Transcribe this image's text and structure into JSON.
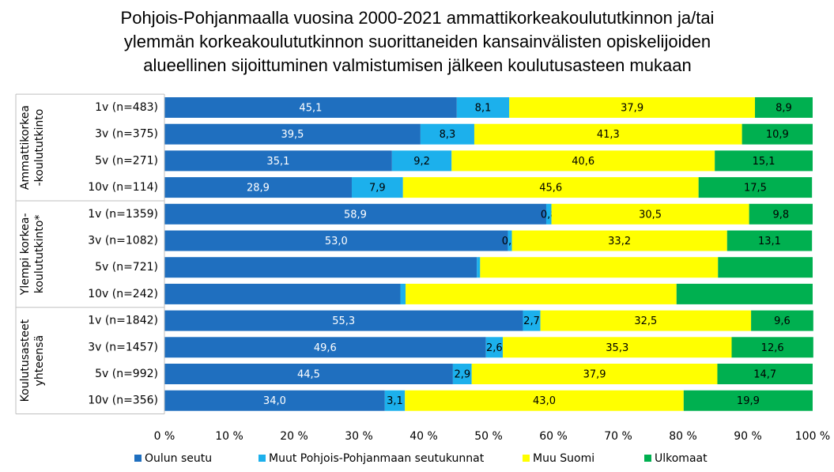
{
  "chart_data": {
    "type": "stacked_barh",
    "title_lines": [
      "Pohjois-Pohjanmaalla vuosina 2000-2021 ammattikorkeakoulututkinnon ja/tai",
      "ylemmän korkeakoulututkinnon suorittaneiden kansainvälisten opiskelijoiden",
      "alueellinen sijoittuminen valmistumisen jälkeen koulutusasteen mukaan"
    ],
    "groups": [
      {
        "lines": [
          "Ammattikorkea",
          "-koulututkinto"
        ],
        "categories": [
          "1v (n=483)",
          "3v (n=375)",
          "5v (n=271)",
          "10v (n=114)"
        ]
      },
      {
        "lines": [
          "Ylempi korkea-",
          "koulututkinto*"
        ],
        "categories": [
          "1v (n=1359)",
          "3v (n=1082)",
          "5v (n=721)",
          "10v (n=242)"
        ]
      },
      {
        "lines": [
          "Koulutusasteet",
          "yhteensä"
        ],
        "categories": [
          "1v (n=1842)",
          "3v (n=1457)",
          "5v (n=992)",
          "10v (n=356)"
        ]
      }
    ],
    "series": [
      {
        "name": "Oulun seutu",
        "color": "#1f6fbf",
        "label_color": "#ffffff",
        "values": [
          45.1,
          39.5,
          35.1,
          28.9,
          58.9,
          53.0,
          48.2,
          36.4,
          55.3,
          49.6,
          44.5,
          34.0
        ],
        "value_labels": [
          "45,1",
          "39,5",
          "35,1",
          "28,9",
          "58,9",
          "53,0",
          null,
          null,
          "55,3",
          "49,6",
          "44,5",
          "34,0"
        ]
      },
      {
        "name": "Muut Pohjois-Pohjanmaan seutukunnat",
        "color": "#1cb0ec",
        "label_color": "#000000",
        "values": [
          8.1,
          8.3,
          9.2,
          7.9,
          0.8,
          0.6,
          0.5,
          0.8,
          2.7,
          2.6,
          2.9,
          3.1
        ],
        "value_labels": [
          "8,1",
          "8,3",
          "9,2",
          "7,9",
          "0,8",
          "0,6",
          null,
          null,
          "2,7",
          "2,6",
          "2,9",
          "3,1"
        ]
      },
      {
        "name": "Muu Suomi",
        "color": "#ffff00",
        "label_color": "#000000",
        "values": [
          37.9,
          41.3,
          40.6,
          45.6,
          30.5,
          33.2,
          36.7,
          41.8,
          32.5,
          35.3,
          37.9,
          43.0
        ],
        "value_labels": [
          "37,9",
          "41,3",
          "40,6",
          "45,6",
          "30,5",
          "33,2",
          null,
          null,
          "32,5",
          "35,3",
          "37,9",
          "43,0"
        ]
      },
      {
        "name": "Ulkomaat",
        "color": "#00b050",
        "label_color": "#000000",
        "values": [
          8.9,
          10.9,
          15.1,
          17.5,
          9.8,
          13.1,
          14.6,
          21.0,
          9.6,
          12.6,
          14.7,
          19.9
        ],
        "value_labels": [
          "8,9",
          "10,9",
          "15,1",
          "17,5",
          "9,8",
          "13,1",
          null,
          null,
          "9,6",
          "12,6",
          "14,7",
          "19,9"
        ]
      }
    ],
    "xlim": [
      0,
      100
    ],
    "xticks": [
      {
        "value": 0,
        "label": "0 %"
      },
      {
        "value": 10,
        "label": "10 %"
      },
      {
        "value": 20,
        "label": "20 %"
      },
      {
        "value": 30,
        "label": "30 %"
      },
      {
        "value": 40,
        "label": "40 %"
      },
      {
        "value": 50,
        "label": "50 %"
      },
      {
        "value": 60,
        "label": "60 %"
      },
      {
        "value": 70,
        "label": "70 %"
      },
      {
        "value": 80,
        "label": "80 %"
      },
      {
        "value": 90,
        "label": "90 %"
      },
      {
        "value": 100,
        "label": "100 %"
      }
    ],
    "legend": "bottom"
  }
}
